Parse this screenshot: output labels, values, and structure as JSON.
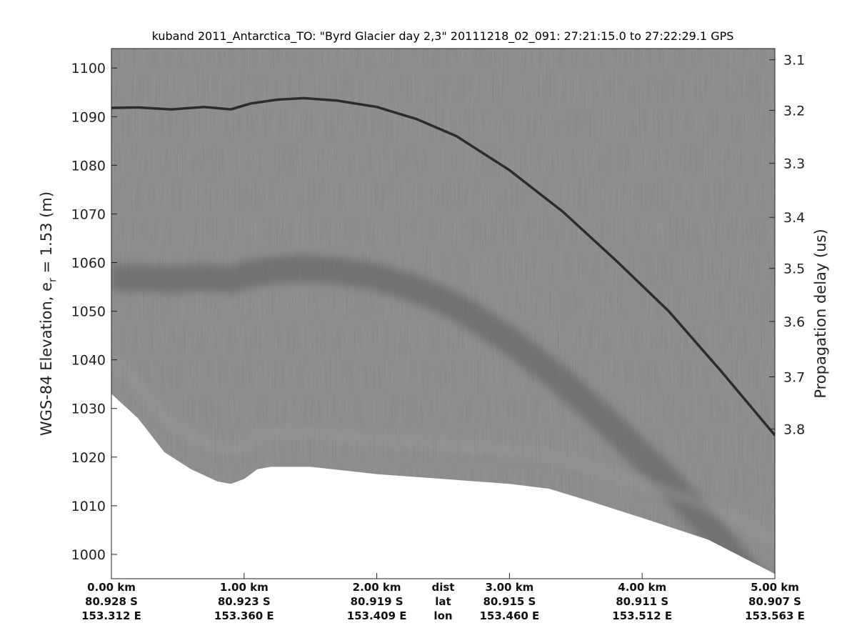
{
  "chart_data": {
    "type": "heatmap",
    "title": "kuband 2011_Antarctica_TO: \"Byrd Glacier day 2,3\"  20111218_02_091: 27:21:15.0 to 27:22:29.1 GPS",
    "ylabel_left_main": "WGS-84 Elevation, e",
    "ylabel_left_sub": "r",
    "ylabel_left_tail": " = 1.53 (m)",
    "ylabel_right": "Propagation delay (us)",
    "ylim": [
      995,
      1104
    ],
    "left_ticks": [
      1000,
      1010,
      1020,
      1030,
      1040,
      1050,
      1060,
      1070,
      1080,
      1090,
      1100
    ],
    "right_ticks": [
      "3.1",
      "3.2",
      "3.3",
      "3.4",
      "3.5",
      "3.6",
      "3.7",
      "3.8"
    ],
    "right_tick_elevations": [
      1101.7,
      1091.3,
      1080.4,
      1069.3,
      1058.8,
      1047.9,
      1036.5,
      1025.8
    ],
    "xlim_km": [
      0,
      5
    ],
    "x_row_labels": [
      "dist",
      "lat",
      "lon"
    ],
    "x_ticks": [
      {
        "km": 0.0,
        "dist": "0.00 km",
        "lat": "80.928 S",
        "lon": "153.312 E"
      },
      {
        "km": 1.0,
        "dist": "1.00 km",
        "lat": "80.923 S",
        "lon": "153.360 E"
      },
      {
        "km": 2.0,
        "dist": "2.00 km",
        "lat": "80.919 S",
        "lon": "153.409 E"
      },
      {
        "km": 3.0,
        "dist": "3.00 km",
        "lat": "80.915 S",
        "lon": "153.460 E"
      },
      {
        "km": 4.0,
        "dist": "4.00 km",
        "lat": "80.911 S",
        "lon": "153.512 E"
      },
      {
        "km": 5.0,
        "dist": "5.00 km",
        "lat": "80.907 S",
        "lon": "153.563 E"
      }
    ],
    "surface_profile": {
      "km": [
        0.0,
        0.2,
        0.45,
        0.7,
        0.9,
        1.05,
        1.25,
        1.45,
        1.7,
        2.0,
        2.3,
        2.6,
        3.0,
        3.4,
        3.8,
        4.2,
        4.6,
        5.0
      ],
      "elev": [
        1091.8,
        1091.9,
        1091.5,
        1092.0,
        1091.5,
        1092.7,
        1093.5,
        1093.8,
        1093.3,
        1092.0,
        1089.5,
        1086.0,
        1079.0,
        1070.5,
        1060.5,
        1050.0,
        1037.5,
        1024.5
      ]
    },
    "data_bottom_profile": {
      "km": [
        0.0,
        0.2,
        0.4,
        0.6,
        0.8,
        0.9,
        1.0,
        1.1,
        1.2,
        1.5,
        2.0,
        2.5,
        3.0,
        3.3,
        3.6,
        4.0,
        4.5,
        5.0
      ],
      "elev": [
        1033.0,
        1028.0,
        1021.0,
        1017.5,
        1015.0,
        1014.5,
        1015.5,
        1017.5,
        1018.0,
        1018.0,
        1016.5,
        1015.5,
        1014.5,
        1013.5,
        1011.0,
        1007.5,
        1003.0,
        996.0
      ]
    },
    "grid": false
  }
}
